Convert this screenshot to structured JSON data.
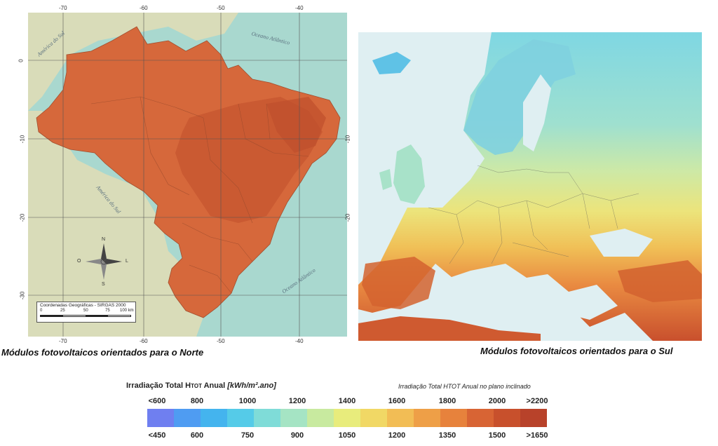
{
  "brazil_map": {
    "longitude_ticks": [
      "-70",
      "-60",
      "-50",
      "-40"
    ],
    "latitude_ticks": [
      "0",
      "-10",
      "-20",
      "-30"
    ],
    "sea_labels": {
      "north_west": "América do Sul",
      "ocean_north": "Oceano Atlântico",
      "south_west": "América do Sul",
      "ocean_south": "Oceano Atlântico"
    },
    "compass": {
      "n": "N",
      "s": "S",
      "o": "O",
      "l": "L"
    },
    "coordinates_note": "Coordenadas Geográficas - SIRGAS 2000",
    "scale_labels": [
      "0",
      "25",
      "50",
      "75",
      "100 km"
    ]
  },
  "captions": {
    "brazil": "Módulos fotovoltaicos orientados para o Norte",
    "europe": "Módulos fotovoltaicos orientados para o Sul"
  },
  "legend": {
    "title_main": "Irradiação Total H",
    "title_sub": "TOT",
    "title_rest": " Anual ",
    "title_unit": "[kWh/m².ano]",
    "title_right": "Irradiação Total HTOT Anual no plano inclinado",
    "top_labels": [
      "<600",
      "800",
      "1000",
      "1200",
      "1400",
      "1600",
      "1800",
      "2000",
      ">2200"
    ],
    "bottom_labels": [
      "<450",
      "600",
      "750",
      "900",
      "1050",
      "1200",
      "1350",
      "1500",
      ">1650"
    ],
    "colors": [
      "#6f7ff0",
      "#4f9cf2",
      "#44b4ee",
      "#55cbe8",
      "#7fdcd8",
      "#a5e4c4",
      "#c8ea9f",
      "#e8ec7c",
      "#f1d865",
      "#f2bd55",
      "#ee9f47",
      "#e7823c",
      "#d86434",
      "#c8502c",
      "#b8422a"
    ]
  }
}
